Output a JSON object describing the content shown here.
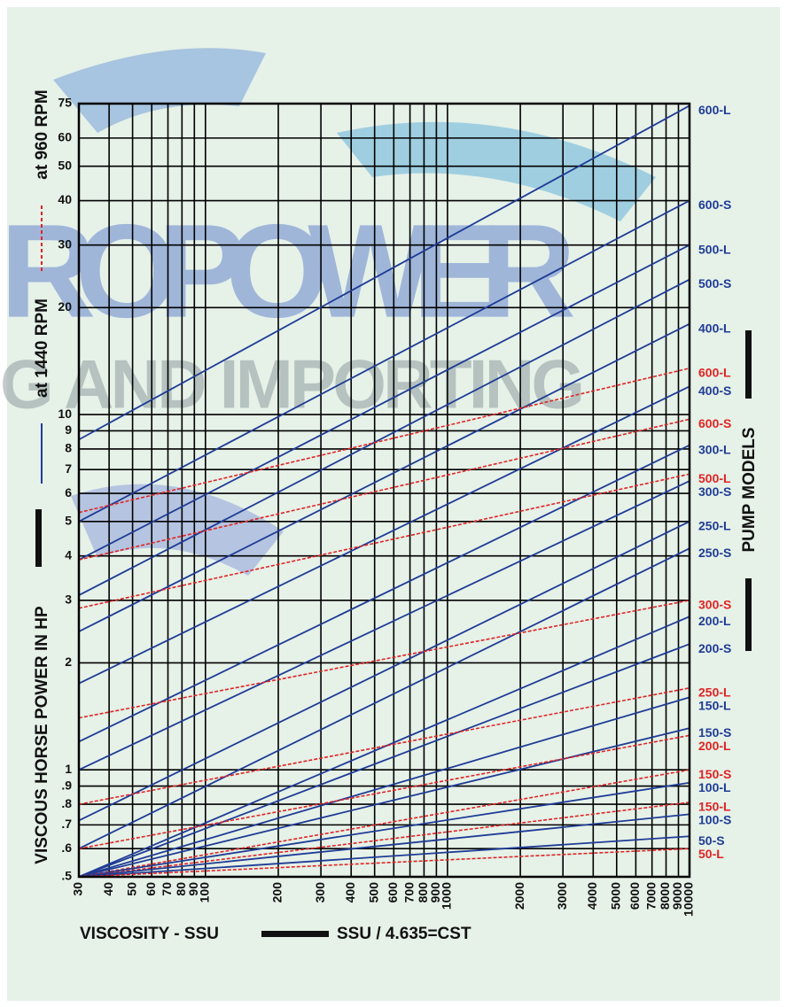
{
  "chart_data": {
    "type": "line",
    "y_axis_label": "VISCOUS HORSE POWER IN HP",
    "legend_items": [
      "at 1440 RPM",
      "at 960 RPM"
    ],
    "right_axis_label": "PUMP MODELS",
    "x_axis_label": "VISCOSITY - SSU",
    "x_axis_note": "SSU / 4.635=CST",
    "watermark": [
      "ROPOWER",
      "G AND IMPORTING"
    ],
    "log_x": true,
    "log_y": true,
    "grid": true,
    "x": [
      30,
      10000
    ],
    "xlim": [
      30,
      10000
    ],
    "xticks": [
      30,
      40,
      50,
      60,
      70,
      80,
      90,
      100,
      200,
      300,
      400,
      500,
      600,
      700,
      800,
      900,
      1000,
      2000,
      3000,
      4000,
      5000,
      6000,
      7000,
      8000,
      9000,
      10000
    ],
    "ylim": [
      0.5,
      75
    ],
    "yticks": [
      {
        "value": 0.5,
        "label": ".5"
      },
      {
        "value": 0.6,
        "label": ".6"
      },
      {
        "value": 0.7,
        "label": ".7"
      },
      {
        "value": 0.8,
        "label": ".8"
      },
      {
        "value": 0.9,
        "label": ".9"
      },
      1,
      2,
      3,
      4,
      5,
      6,
      7,
      8,
      9,
      10,
      20,
      30,
      40,
      50,
      60,
      75
    ],
    "series": [
      {
        "name": "600-L",
        "color": "#1f3c96",
        "line_style": "solid",
        "values": [
          8.5,
          74
        ]
      },
      {
        "name": "600-S",
        "color": "#1f3c96",
        "line_style": "solid",
        "values": [
          5,
          40
        ]
      },
      {
        "name": "500-L",
        "color": "#1f3c96",
        "line_style": "solid",
        "values": [
          3.9,
          30
        ]
      },
      {
        "name": "500-S",
        "color": "#1f3c96",
        "line_style": "solid",
        "values": [
          3.1,
          24
        ]
      },
      {
        "name": "400-L",
        "color": "#1f3c96",
        "line_style": "solid",
        "values": [
          2.45,
          18
        ]
      },
      {
        "name": "600-L",
        "color": "#e02424",
        "line_style": "dashed",
        "values": [
          5.3,
          13.5
        ]
      },
      {
        "name": "400-S",
        "color": "#1f3c96",
        "line_style": "solid",
        "values": [
          1.75,
          12
        ]
      },
      {
        "name": "600-S",
        "color": "#e02424",
        "line_style": "dashed",
        "values": [
          3.9,
          9.7
        ]
      },
      {
        "name": "300-L",
        "color": "#1f3c96",
        "line_style": "solid",
        "values": [
          1.2,
          8.2
        ]
      },
      {
        "name": "500-L",
        "color": "#e02424",
        "line_style": "dashed",
        "values": [
          2.85,
          6.8
        ]
      },
      {
        "name": "300-S",
        "color": "#1f3c96",
        "line_style": "solid",
        "values": [
          1,
          6.5
        ]
      },
      {
        "name": "250-L",
        "color": "#1f3c96",
        "line_style": "solid",
        "values": [
          0.72,
          5
        ]
      },
      {
        "name": "250-S",
        "color": "#1f3c96",
        "line_style": "solid",
        "values": [
          0.6,
          4.2
        ]
      },
      {
        "name": "300-S",
        "color": "#e02424",
        "line_style": "dashed",
        "values": [
          1.4,
          3
        ]
      },
      {
        "name": "200-L",
        "color": "#1f3c96",
        "line_style": "solid",
        "values": [
          0.5,
          2.7
        ]
      },
      {
        "name": "200-S",
        "color": "#1f3c96",
        "line_style": "solid",
        "values": [
          0.5,
          2.26
        ]
      },
      {
        "name": "250-L",
        "color": "#e02424",
        "line_style": "dashed",
        "values": [
          0.8,
          1.7
        ]
      },
      {
        "name": "150-L",
        "color": "#1f3c96",
        "line_style": "solid",
        "values": [
          0.5,
          1.6
        ]
      },
      {
        "name": "150-S",
        "color": "#1f3c96",
        "line_style": "solid",
        "values": [
          0.5,
          1.31
        ]
      },
      {
        "name": "200-L",
        "color": "#e02424",
        "line_style": "dashed",
        "values": [
          0.6,
          1.25
        ]
      },
      {
        "name": "150-S",
        "color": "#e02424",
        "line_style": "dashed",
        "values": [
          0.5,
          1
        ]
      },
      {
        "name": "100-L",
        "color": "#1f3c96",
        "line_style": "solid",
        "values": [
          0.5,
          0.92
        ]
      },
      {
        "name": "150-L",
        "color": "#e02424",
        "line_style": "dashed",
        "values": [
          0.5,
          0.81
        ]
      },
      {
        "name": "100-S",
        "color": "#1f3c96",
        "line_style": "solid",
        "values": [
          0.5,
          0.75
        ]
      },
      {
        "name": "50-S",
        "color": "#1f3c96",
        "line_style": "solid",
        "values": [
          0.5,
          0.65
        ]
      },
      {
        "name": "50-L",
        "color": "#e02424",
        "line_style": "dashed",
        "values": [
          0.5,
          0.6
        ]
      }
    ]
  }
}
